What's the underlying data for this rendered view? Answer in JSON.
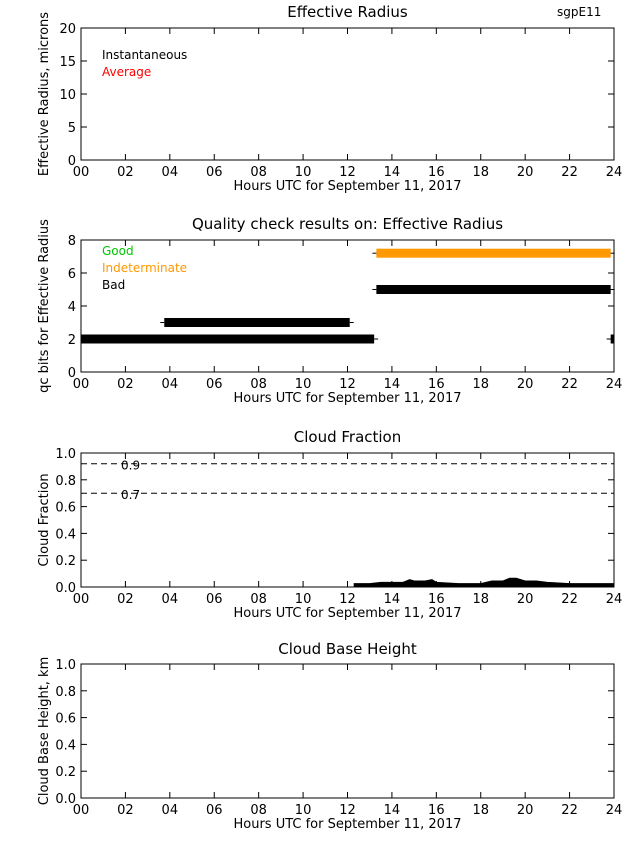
{
  "site_label": "sgpE11",
  "colors": {
    "axis": "#000000",
    "good": "#00c800",
    "indeterminate": "#ff9900",
    "bad": "#000000",
    "average": "#ff0000",
    "instantaneous": "#000000"
  },
  "chart_data": [
    {
      "id": "effective-radius",
      "type": "line",
      "title": "Effective Radius",
      "xlabel": "Hours UTC for September 11, 2017",
      "ylabel": "Effective Radius, microns",
      "xlim": [
        0,
        24
      ],
      "ylim": [
        0,
        20
      ],
      "xticks": [
        "00",
        "02",
        "04",
        "06",
        "08",
        "10",
        "12",
        "14",
        "16",
        "18",
        "20",
        "22",
        "24"
      ],
      "yticks": [
        "0",
        "5",
        "10",
        "15",
        "20"
      ],
      "legend": [
        {
          "label": "Instantaneous",
          "color": "#000000"
        },
        {
          "label": "Average",
          "color": "#ff0000"
        }
      ],
      "series": []
    },
    {
      "id": "qc-results",
      "type": "bar",
      "title": "Quality check  results on: Effective Radius",
      "xlabel": "Hours UTC for September 11, 2017",
      "ylabel": "qc bits for Effective Radius",
      "xlim": [
        0,
        24
      ],
      "ylim": [
        0,
        8
      ],
      "xticks": [
        "00",
        "02",
        "04",
        "06",
        "08",
        "10",
        "12",
        "14",
        "16",
        "18",
        "20",
        "22",
        "24"
      ],
      "yticks": [
        "0",
        "2",
        "4",
        "6",
        "8"
      ],
      "legend": [
        {
          "label": "Good",
          "color": "#00c800"
        },
        {
          "label": "Indeterminate",
          "color": "#ff9900"
        },
        {
          "label": "Bad",
          "color": "#000000"
        }
      ],
      "segments": [
        {
          "y": 2,
          "x_start": 0.0,
          "x_end": 13.2,
          "color": "#000000"
        },
        {
          "y": 2,
          "x_start": 23.85,
          "x_end": 24.0,
          "color": "#000000"
        },
        {
          "y": 3,
          "x_start": 3.75,
          "x_end": 12.1,
          "color": "#000000"
        },
        {
          "y": 5,
          "x_start": 13.3,
          "x_end": 23.85,
          "color": "#000000"
        },
        {
          "y": 7.2,
          "x_start": 13.3,
          "x_end": 23.85,
          "color": "#ff9900"
        }
      ]
    },
    {
      "id": "cloud-fraction",
      "type": "area",
      "title": "Cloud Fraction",
      "xlabel": "Hours UTC for September 11, 2017",
      "ylabel": "Cloud Fraction",
      "xlim": [
        0,
        24
      ],
      "ylim": [
        0,
        1
      ],
      "xticks": [
        "00",
        "02",
        "04",
        "06",
        "08",
        "10",
        "12",
        "14",
        "16",
        "18",
        "20",
        "22",
        "24"
      ],
      "yticks": [
        "0.0",
        "0.2",
        "0.4",
        "0.6",
        "0.8",
        "1.0"
      ],
      "reference_lines": [
        {
          "y": 0.92,
          "label": "0.9"
        },
        {
          "y": 0.7,
          "label": "0.7"
        }
      ],
      "series": [
        {
          "x": [
            12.3,
            13.0,
            13.5,
            14.0,
            14.5,
            14.8,
            15.0,
            15.5,
            15.8,
            16.0,
            17.0,
            18.0,
            18.5,
            19.0,
            19.3,
            19.6,
            20.0,
            20.5,
            21.0,
            22.0,
            23.0,
            24.0
          ],
          "y": [
            0.01,
            0.01,
            0.02,
            0.02,
            0.02,
            0.04,
            0.03,
            0.03,
            0.04,
            0.02,
            0.01,
            0.01,
            0.03,
            0.03,
            0.05,
            0.05,
            0.03,
            0.03,
            0.02,
            0.01,
            0.01,
            0.01
          ]
        }
      ]
    },
    {
      "id": "cloud-base-height",
      "type": "line",
      "title": "Cloud Base Height",
      "xlabel": "Hours UTC for September 11, 2017",
      "ylabel": "Cloud Base Height, km",
      "xlim": [
        0,
        24
      ],
      "ylim": [
        0,
        1
      ],
      "xticks": [
        "00",
        "02",
        "04",
        "06",
        "08",
        "10",
        "12",
        "14",
        "16",
        "18",
        "20",
        "22",
        "24"
      ],
      "yticks": [
        "0.0",
        "0.2",
        "0.4",
        "0.6",
        "0.8",
        "1.0"
      ],
      "series": []
    }
  ]
}
